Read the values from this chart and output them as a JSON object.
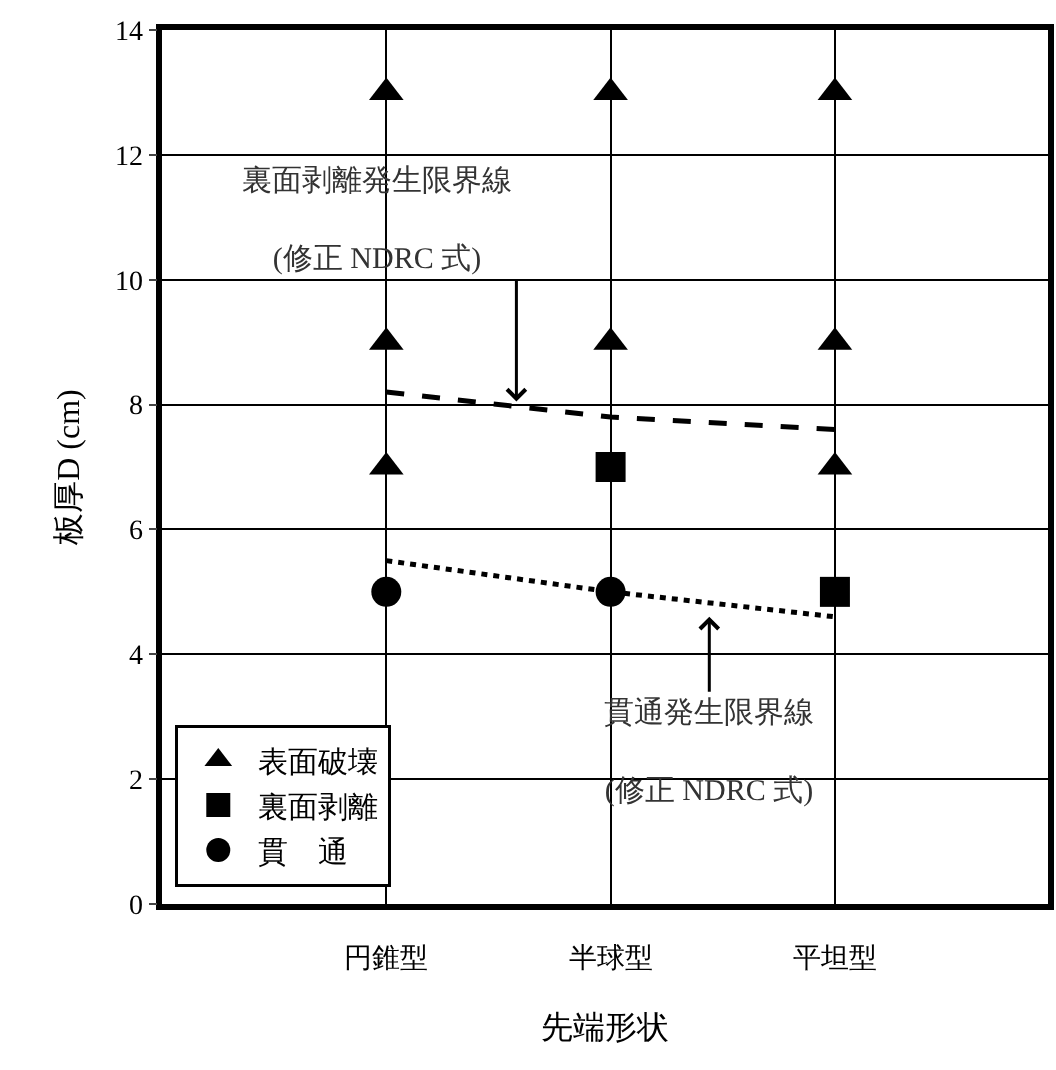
{
  "chart_data": {
    "type": "scatter",
    "xlabel": "先端形状",
    "ylabel": "板厚D (cm)",
    "categories": [
      "円錐型",
      "半球型",
      "平坦型"
    ],
    "ylim": [
      0,
      14
    ],
    "yticks": [
      0,
      2,
      4,
      6,
      8,
      10,
      12,
      14
    ],
    "grid": true,
    "legend": "bottom left",
    "series": [
      {
        "name": "表面破壊",
        "color": "#000000",
        "marker": "triangle",
        "x": [
          "円錐型",
          "円錐型",
          "円錐型",
          "半球型",
          "半球型",
          "平坦型",
          "平坦型",
          "平坦型"
        ],
        "values": [
          7,
          9,
          13,
          9,
          13,
          7,
          9,
          13
        ]
      },
      {
        "name": "裏面剥離",
        "color": "#000000",
        "marker": "square",
        "x": [
          "半球型",
          "平坦型"
        ],
        "values": [
          7,
          5
        ]
      },
      {
        "name": "貫　通",
        "color": "#000000",
        "marker": "circle",
        "x": [
          "円錐型",
          "半球型"
        ],
        "values": [
          5,
          5
        ]
      },
      {
        "type": "line",
        "color": "#000000",
        "line_style": "dashed",
        "marker": "none",
        "x": [
          "円錐型",
          "半球型",
          "平坦型"
        ],
        "values": [
          8.2,
          7.8,
          7.6
        ]
      },
      {
        "type": "line",
        "color": "#000000",
        "line_style": "dotted",
        "marker": "none",
        "x": [
          "円錐型",
          "半球型",
          "平坦型"
        ],
        "values": [
          5.5,
          5.0,
          4.6
        ]
      }
    ],
    "annotations": [
      "裏面剥離発生限界線\n(修正 NDRC 式)",
      "貫通発生限界線\n(修正 NDRC 式)"
    ]
  }
}
